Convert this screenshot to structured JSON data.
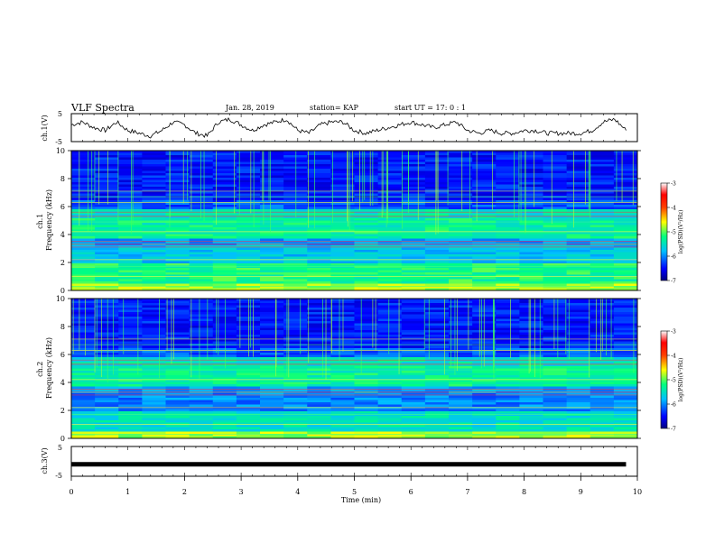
{
  "header": {
    "title": "VLF Spectra",
    "date": "Jan. 28, 2019",
    "station": "station= KAP",
    "start": "start  UT =   17: 0  : 1"
  },
  "chart_data": [
    {
      "id": "ch1-waveform",
      "type": "line",
      "ylabel": "ch.1(V)",
      "ylim": [
        -5,
        5
      ],
      "yticks": [
        "5",
        "-5"
      ],
      "xlim": [
        0,
        10
      ],
      "series": [
        {
          "x": [
            0,
            0.2,
            0.4,
            0.6,
            0.8,
            1.0,
            1.2,
            1.4,
            1.6,
            1.8,
            2.0,
            2.2,
            2.4,
            2.6,
            2.8,
            3.0,
            3.2,
            3.4,
            3.6,
            3.8,
            4.0,
            4.2,
            4.4,
            4.6,
            4.8,
            5.0,
            5.2,
            5.4,
            5.6,
            5.8,
            6.0,
            6.2,
            6.4,
            6.6,
            6.8,
            7.0,
            7.2,
            7.4,
            7.6,
            7.8,
            8.0,
            8.2,
            8.4,
            8.6,
            8.8,
            9.0,
            9.2,
            9.4,
            9.6,
            9.8
          ],
          "values": [
            1,
            2,
            0,
            -1,
            2,
            -1,
            -2,
            -3,
            -1,
            2,
            1,
            -2,
            -3,
            2,
            3,
            1,
            -1,
            1,
            2,
            3,
            -1,
            -2,
            1,
            2,
            2,
            -1,
            -2,
            -1,
            0,
            1,
            2,
            1,
            0,
            1,
            2,
            -1,
            -2,
            -1,
            -2,
            -2,
            -1,
            -1,
            -2,
            -2,
            -2,
            -2,
            -1,
            2,
            3,
            -1
          ],
          "color": "#000000"
        }
      ]
    },
    {
      "id": "ch1-spectrogram",
      "type": "heatmap",
      "ylabel": "ch.1\nFrequency (kHz)",
      "ylim": [
        0,
        10
      ],
      "yticks": [
        "0",
        "2",
        "4",
        "6",
        "8",
        "10"
      ],
      "xlim": [
        0,
        10
      ],
      "colorbar": {
        "label": "log(PSD)(V²/Hz)",
        "range": [
          -7,
          -3
        ],
        "ticks": [
          "-3",
          "-4",
          "-5",
          "-6",
          "-7"
        ]
      }
    },
    {
      "id": "ch2-spectrogram",
      "type": "heatmap",
      "ylabel": "ch.2\nFrequency (kHz)",
      "ylim": [
        0,
        10
      ],
      "yticks": [
        "0",
        "2",
        "4",
        "6",
        "8",
        "10"
      ],
      "xlim": [
        0,
        10
      ],
      "colorbar": {
        "label": "log(PSD)(V²/Hz)",
        "range": [
          -7,
          -3
        ],
        "ticks": [
          "-3",
          "-4",
          "-5",
          "-6",
          "-7"
        ]
      }
    },
    {
      "id": "ch3-waveform",
      "type": "line",
      "ylabel": "ch.3(V)",
      "ylim": [
        -5,
        5
      ],
      "yticks": [
        "5",
        "-5"
      ],
      "xlim": [
        0,
        10
      ],
      "series": [
        {
          "x": [
            0,
            9.8
          ],
          "values": [
            -1,
            -1
          ],
          "color": "#000000"
        }
      ]
    }
  ],
  "xaxis": {
    "label": "Time (min)",
    "ticks": [
      "0",
      "1",
      "2",
      "3",
      "4",
      "5",
      "6",
      "7",
      "8",
      "9",
      "10"
    ]
  }
}
